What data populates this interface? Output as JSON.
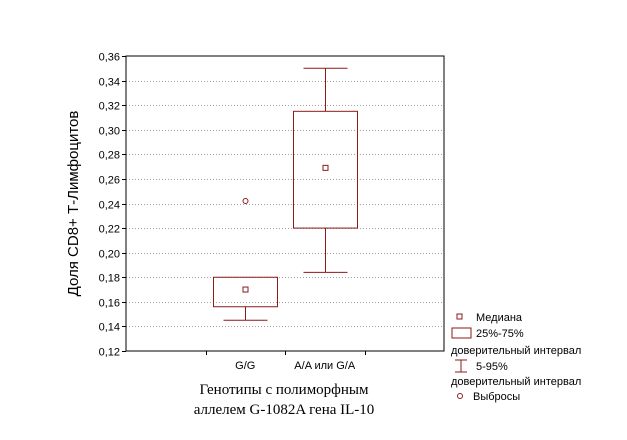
{
  "chart_data": {
    "type": "box",
    "ylabel": "Доля CD8+ Т-Лимфоцитов",
    "xlabel_lines": [
      "Генотипы с полиморфным",
      "аллелем G-1082A гена IL-10"
    ],
    "ylim": [
      0.12,
      0.36
    ],
    "yticks": [
      "0,12",
      "0,14",
      "0,16",
      "0,18",
      "0,20",
      "0,22",
      "0,24",
      "0,26",
      "0,28",
      "0,30",
      "0,32",
      "0,34",
      "0,36"
    ],
    "yticks_values": [
      0.12,
      0.14,
      0.16,
      0.18,
      0.2,
      0.22,
      0.24,
      0.26,
      0.28,
      0.3,
      0.32,
      0.34,
      0.36
    ],
    "grid": true,
    "categories": [
      "G/G",
      "A/A или G/A"
    ],
    "boxes": [
      {
        "median": 0.17,
        "q1": 0.156,
        "q3": 0.18,
        "whisker_low": 0.145,
        "whisker_high": 0.18,
        "outliers": [
          0.242
        ]
      },
      {
        "median": 0.269,
        "q1": 0.22,
        "q3": 0.315,
        "whisker_low": 0.184,
        "whisker_high": 0.35,
        "outliers": []
      }
    ],
    "legend": {
      "placement": "bottom-right",
      "items": [
        {
          "type": "median",
          "label": "Медиана"
        },
        {
          "type": "box",
          "label": "25%-75%",
          "sub": "доверительный интервал"
        },
        {
          "type": "whisker",
          "label": "5-95%",
          "sub": "доверительный интервал"
        },
        {
          "type": "outlier",
          "label": "Выбросы"
        }
      ]
    },
    "colors": {
      "series": "#8b1a1a",
      "grid": "#a0a0a0",
      "axis": "#000000"
    }
  }
}
